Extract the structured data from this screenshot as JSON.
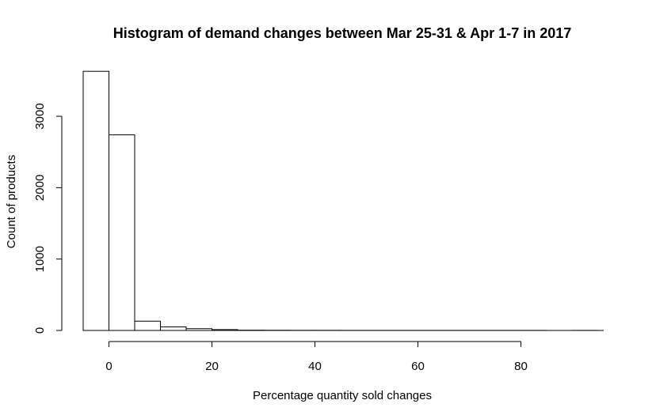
{
  "chart_data": {
    "type": "bar",
    "title": "Histogram of demand changes between Mar 25-31 & Apr 1-7 in 2017",
    "xlabel": "Percentage quantity sold changes",
    "ylabel": "Count of products",
    "bins": [
      {
        "start": -5,
        "end": 0,
        "count": 3630
      },
      {
        "start": 0,
        "end": 5,
        "count": 2740
      },
      {
        "start": 5,
        "end": 10,
        "count": 130
      },
      {
        "start": 10,
        "end": 15,
        "count": 50
      },
      {
        "start": 15,
        "end": 20,
        "count": 25
      },
      {
        "start": 20,
        "end": 25,
        "count": 12
      },
      {
        "start": 25,
        "end": 30,
        "count": 4
      },
      {
        "start": 30,
        "end": 35,
        "count": 3
      },
      {
        "start": 35,
        "end": 40,
        "count": 2
      },
      {
        "start": 40,
        "end": 45,
        "count": 2
      },
      {
        "start": 45,
        "end": 50,
        "count": 1
      },
      {
        "start": 50,
        "end": 55,
        "count": 1
      },
      {
        "start": 55,
        "end": 60,
        "count": 1
      },
      {
        "start": 60,
        "end": 65,
        "count": 1
      },
      {
        "start": 65,
        "end": 70,
        "count": 1
      },
      {
        "start": 70,
        "end": 75,
        "count": 1
      },
      {
        "start": 75,
        "end": 80,
        "count": 1
      },
      {
        "start": 80,
        "end": 85,
        "count": 1
      },
      {
        "start": 85,
        "end": 90,
        "count": 0
      },
      {
        "start": 90,
        "end": 95,
        "count": 1
      }
    ],
    "x_ticks": [
      0,
      20,
      40,
      60,
      80
    ],
    "y_ticks": [
      0,
      1000,
      2000,
      3000
    ],
    "xlim": [
      -5,
      95
    ],
    "ylim": [
      0,
      3630
    ],
    "grid": false,
    "legend": "none"
  }
}
